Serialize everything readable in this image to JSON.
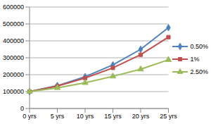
{
  "chart_data": {
    "type": "line",
    "categories": [
      "0 yrs",
      "5 yrs",
      "10 yrs",
      "15 yrs",
      "20 yrs",
      "25 yrs"
    ],
    "series": [
      {
        "name": "0.50%",
        "color": "#4f81bd",
        "marker": "diamond",
        "values": [
          100000,
          135000,
          188000,
          258000,
          350000,
          478000
        ]
      },
      {
        "name": "1%",
        "color": "#c0504d",
        "marker": "square",
        "values": [
          100000,
          132000,
          180000,
          240000,
          318000,
          422000
        ]
      },
      {
        "name": "2.50%",
        "color": "#9bbb59",
        "marker": "triangle",
        "values": [
          100000,
          122000,
          152000,
          190000,
          232000,
          288000
        ]
      }
    ],
    "ylim": [
      0,
      600000
    ],
    "yticks": [
      0,
      100000,
      200000,
      300000,
      400000,
      500000,
      600000
    ],
    "grid": true,
    "legend": "right"
  }
}
